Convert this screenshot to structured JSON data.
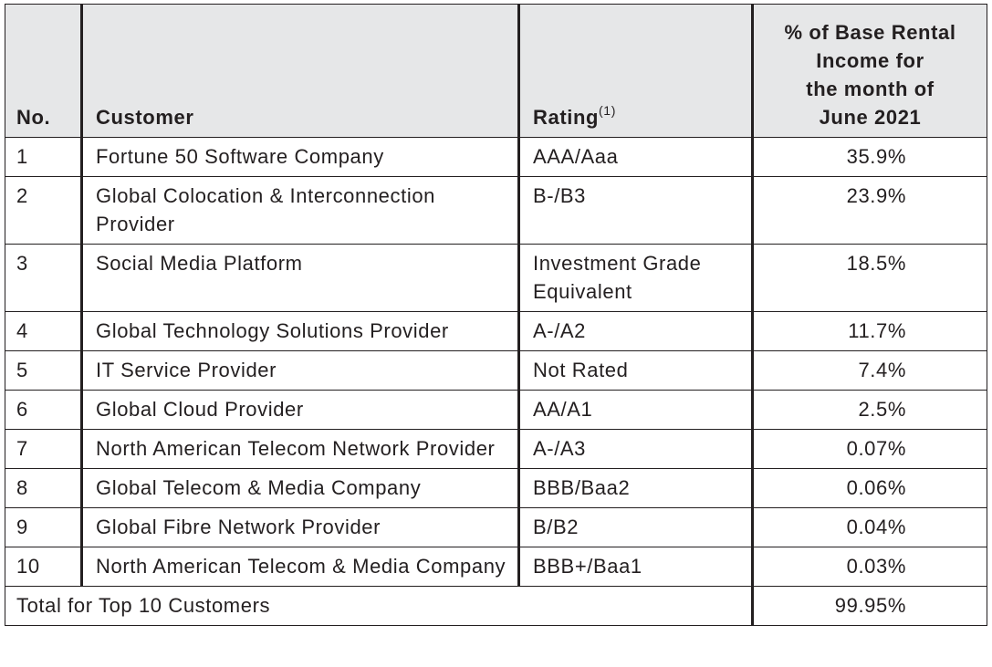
{
  "table": {
    "headers": {
      "no": "No.",
      "customer": "Customer",
      "rating": "Rating",
      "rating_sup": "(1)",
      "pct_line1": "% of Base Rental",
      "pct_line2": "Income for",
      "pct_line3": "the month of",
      "pct_line4": "June 2021"
    },
    "rows": [
      {
        "no": "1",
        "customer": "Fortune 50 Software Company",
        "rating": "AAA/Aaa",
        "pct": "35.9%"
      },
      {
        "no": "2",
        "customer": "Global Colocation & Interconnection Provider",
        "rating": "B-/B3",
        "pct": "23.9%"
      },
      {
        "no": "3",
        "customer": "Social Media Platform",
        "rating": "Investment Grade Equivalent",
        "pct": "18.5%"
      },
      {
        "no": "4",
        "customer": "Global Technology Solutions Provider",
        "rating": "A-/A2",
        "pct": "11.7%"
      },
      {
        "no": "5",
        "customer": "IT Service Provider",
        "rating": "Not Rated",
        "pct": "7.4%"
      },
      {
        "no": "6",
        "customer": "Global Cloud Provider",
        "rating": "AA/A1",
        "pct": "2.5%"
      },
      {
        "no": "7",
        "customer": "North American Telecom Network Provider",
        "rating": "A-/A3",
        "pct": "0.07%"
      },
      {
        "no": "8",
        "customer": "Global Telecom & Media Company",
        "rating": "BBB/Baa2",
        "pct": "0.06%"
      },
      {
        "no": "9",
        "customer": "Global Fibre Network Provider",
        "rating": "B/B2",
        "pct": "0.04%"
      },
      {
        "no": "10",
        "customer": "North American Telecom & Media Company",
        "rating": "BBB+/Baa1",
        "pct": "0.03%"
      }
    ],
    "total": {
      "label": "Total for Top 10 Customers",
      "pct": "99.95%"
    }
  }
}
